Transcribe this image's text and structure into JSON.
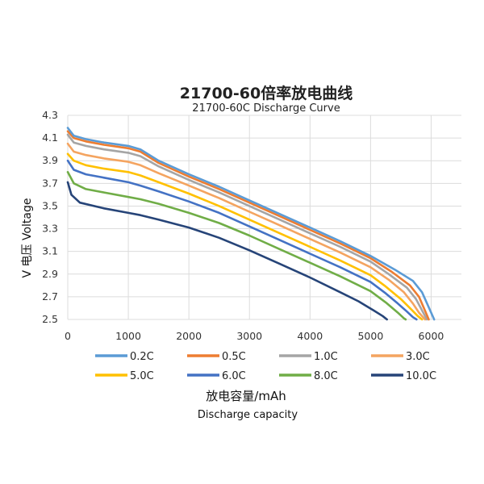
{
  "chart_data": {
    "type": "line",
    "title": "21700-60倍率放电曲线",
    "subtitle": "21700-60C Discharge Curve",
    "xlabel": "放电容量/mAh",
    "xlabel_en": "Discharge capacity",
    "ylabel": "V 电压 Voltage",
    "xlim": [
      0,
      6500
    ],
    "ylim": [
      2.5,
      4.3
    ],
    "x_ticks": [
      "0",
      "1000",
      "2000",
      "3000",
      "4000",
      "5000",
      "6000"
    ],
    "y_ticks": [
      "2.5",
      "2.7",
      "2.9",
      "3.1",
      "3.3",
      "3.5",
      "3.7",
      "3.9",
      "4.1",
      "4.3"
    ],
    "grid": true,
    "legend_position": "bottom",
    "series": [
      {
        "name": "0.2C",
        "color": "#5b9bd5",
        "points": [
          [
            0,
            4.19
          ],
          [
            100,
            4.12
          ],
          [
            300,
            4.09
          ],
          [
            600,
            4.06
          ],
          [
            1000,
            4.03
          ],
          [
            1200,
            4.0
          ],
          [
            1500,
            3.9
          ],
          [
            2000,
            3.78
          ],
          [
            2500,
            3.67
          ],
          [
            3000,
            3.55
          ],
          [
            3500,
            3.43
          ],
          [
            4000,
            3.31
          ],
          [
            4500,
            3.19
          ],
          [
            5000,
            3.06
          ],
          [
            5400,
            2.94
          ],
          [
            5700,
            2.84
          ],
          [
            5850,
            2.74
          ],
          [
            5950,
            2.62
          ],
          [
            6050,
            2.5
          ]
        ]
      },
      {
        "name": "0.5C",
        "color": "#ed7d31",
        "points": [
          [
            0,
            4.16
          ],
          [
            100,
            4.1
          ],
          [
            300,
            4.07
          ],
          [
            600,
            4.04
          ],
          [
            1000,
            4.01
          ],
          [
            1200,
            3.98
          ],
          [
            1500,
            3.88
          ],
          [
            2000,
            3.76
          ],
          [
            2500,
            3.65
          ],
          [
            3000,
            3.53
          ],
          [
            3500,
            3.41
          ],
          [
            4000,
            3.29
          ],
          [
            4500,
            3.17
          ],
          [
            5000,
            3.04
          ],
          [
            5350,
            2.92
          ],
          [
            5650,
            2.8
          ],
          [
            5800,
            2.7
          ],
          [
            5880,
            2.6
          ],
          [
            5960,
            2.5
          ]
        ]
      },
      {
        "name": "1.0C",
        "color": "#a5a5a5",
        "points": [
          [
            0,
            4.13
          ],
          [
            100,
            4.06
          ],
          [
            300,
            4.03
          ],
          [
            600,
            4.0
          ],
          [
            1000,
            3.97
          ],
          [
            1200,
            3.94
          ],
          [
            1500,
            3.85
          ],
          [
            2000,
            3.73
          ],
          [
            2500,
            3.62
          ],
          [
            3000,
            3.5
          ],
          [
            3500,
            3.38
          ],
          [
            4000,
            3.26
          ],
          [
            4500,
            3.14
          ],
          [
            5000,
            3.01
          ],
          [
            5300,
            2.9
          ],
          [
            5600,
            2.78
          ],
          [
            5750,
            2.68
          ],
          [
            5850,
            2.58
          ],
          [
            5930,
            2.5
          ]
        ]
      },
      {
        "name": "3.0C",
        "color": "#f4a460",
        "points": [
          [
            0,
            4.05
          ],
          [
            100,
            3.98
          ],
          [
            300,
            3.95
          ],
          [
            600,
            3.92
          ],
          [
            1000,
            3.89
          ],
          [
            1200,
            3.86
          ],
          [
            1500,
            3.79
          ],
          [
            2000,
            3.68
          ],
          [
            2500,
            3.57
          ],
          [
            3000,
            3.45
          ],
          [
            3500,
            3.33
          ],
          [
            4000,
            3.21
          ],
          [
            4500,
            3.09
          ],
          [
            5000,
            2.96
          ],
          [
            5300,
            2.85
          ],
          [
            5550,
            2.74
          ],
          [
            5700,
            2.64
          ],
          [
            5800,
            2.56
          ],
          [
            5900,
            2.5
          ]
        ]
      },
      {
        "name": "5.0C",
        "color": "#ffc000",
        "points": [
          [
            0,
            3.96
          ],
          [
            100,
            3.9
          ],
          [
            300,
            3.86
          ],
          [
            600,
            3.83
          ],
          [
            1000,
            3.8
          ],
          [
            1200,
            3.77
          ],
          [
            1500,
            3.71
          ],
          [
            2000,
            3.61
          ],
          [
            2500,
            3.5
          ],
          [
            3000,
            3.38
          ],
          [
            3500,
            3.26
          ],
          [
            4000,
            3.14
          ],
          [
            4500,
            3.02
          ],
          [
            5000,
            2.89
          ],
          [
            5250,
            2.79
          ],
          [
            5500,
            2.68
          ],
          [
            5650,
            2.6
          ],
          [
            5780,
            2.53
          ],
          [
            5850,
            2.5
          ]
        ]
      },
      {
        "name": "6.0C",
        "color": "#4472c4",
        "points": [
          [
            0,
            3.9
          ],
          [
            100,
            3.82
          ],
          [
            300,
            3.78
          ],
          [
            600,
            3.75
          ],
          [
            1000,
            3.71
          ],
          [
            1200,
            3.68
          ],
          [
            1500,
            3.63
          ],
          [
            2000,
            3.54
          ],
          [
            2500,
            3.44
          ],
          [
            3000,
            3.32
          ],
          [
            3500,
            3.2
          ],
          [
            4000,
            3.08
          ],
          [
            4500,
            2.96
          ],
          [
            5000,
            2.83
          ],
          [
            5250,
            2.73
          ],
          [
            5450,
            2.64
          ],
          [
            5600,
            2.57
          ],
          [
            5700,
            2.52
          ],
          [
            5760,
            2.5
          ]
        ]
      },
      {
        "name": "8.0C",
        "color": "#70ad47",
        "points": [
          [
            0,
            3.8
          ],
          [
            100,
            3.7
          ],
          [
            300,
            3.65
          ],
          [
            600,
            3.62
          ],
          [
            1000,
            3.58
          ],
          [
            1200,
            3.56
          ],
          [
            1500,
            3.52
          ],
          [
            2000,
            3.44
          ],
          [
            2500,
            3.35
          ],
          [
            3000,
            3.24
          ],
          [
            3500,
            3.12
          ],
          [
            4000,
            3.0
          ],
          [
            4500,
            2.88
          ],
          [
            5000,
            2.75
          ],
          [
            5250,
            2.65
          ],
          [
            5450,
            2.56
          ],
          [
            5550,
            2.51
          ],
          [
            5580,
            2.5
          ]
        ]
      },
      {
        "name": "10.0C",
        "color": "#264478",
        "points": [
          [
            0,
            3.71
          ],
          [
            60,
            3.6
          ],
          [
            200,
            3.53
          ],
          [
            600,
            3.48
          ],
          [
            1000,
            3.44
          ],
          [
            1200,
            3.42
          ],
          [
            1500,
            3.38
          ],
          [
            2000,
            3.31
          ],
          [
            2500,
            3.22
          ],
          [
            3000,
            3.11
          ],
          [
            3500,
            2.99
          ],
          [
            4000,
            2.87
          ],
          [
            4500,
            2.74
          ],
          [
            4800,
            2.66
          ],
          [
            5050,
            2.58
          ],
          [
            5200,
            2.53
          ],
          [
            5270,
            2.5
          ]
        ]
      }
    ]
  }
}
